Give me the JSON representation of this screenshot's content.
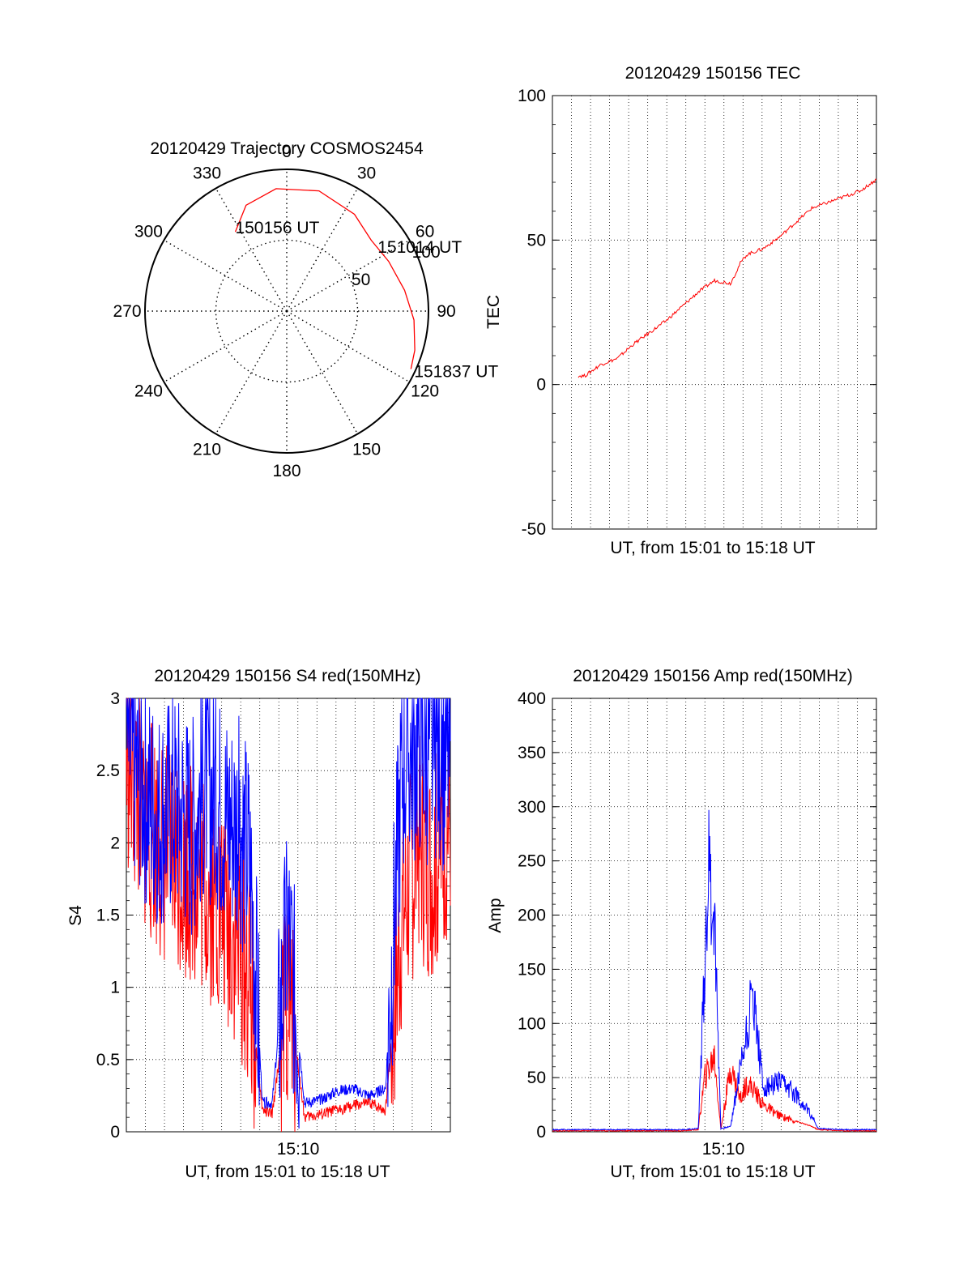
{
  "colors": {
    "red": "#ff0000",
    "blue": "#0000ff",
    "axis": "#000000"
  },
  "chart_data": [
    {
      "type": "polar",
      "title": "20120429 Trajectory COSMOS2454",
      "angle_labels": [
        "0",
        "30",
        "60",
        "90",
        "120",
        "150",
        "180",
        "210",
        "240",
        "270",
        "300",
        "330"
      ],
      "radial_labels": [
        "50",
        "100"
      ],
      "radial_range": [
        0,
        100
      ],
      "grid": true,
      "trajectory": {
        "color": "red",
        "points": [
          {
            "azimuth": 327,
            "elevation": 30
          },
          {
            "azimuth": 339,
            "elevation": 18
          },
          {
            "azimuth": 355,
            "elevation": 12
          },
          {
            "azimuth": 15,
            "elevation": 11
          },
          {
            "azimuth": 35,
            "elevation": 15
          },
          {
            "azimuth": 50,
            "elevation": 20
          },
          {
            "azimuth": 64,
            "elevation": 18
          },
          {
            "azimuth": 80,
            "elevation": 14
          },
          {
            "azimuth": 94,
            "elevation": 9
          },
          {
            "azimuth": 107,
            "elevation": 5
          },
          {
            "azimuth": 115,
            "elevation": 3
          }
        ]
      },
      "annotations": [
        {
          "text": "150156 UT",
          "azimuth": 327,
          "elevation": 30
        },
        {
          "text": "151014 UT",
          "azimuth": 52,
          "elevation": 20
        },
        {
          "text": "151837 UT",
          "azimuth": 115,
          "elevation": 3
        }
      ]
    },
    {
      "type": "line",
      "title": "20120429 150156 TEC",
      "xlabel": "UT, from 15:01 to 15:18 UT",
      "ylabel": "TEC",
      "ylim": [
        -50,
        100
      ],
      "yticks": [
        "-50",
        "0",
        "50",
        "100"
      ],
      "grid": true,
      "series": [
        {
          "color": "red",
          "x": [
            0.08,
            0.1,
            0.15,
            0.2,
            0.25,
            0.3,
            0.35,
            0.4,
            0.45,
            0.5,
            0.55,
            0.58,
            0.6,
            0.65,
            0.7,
            0.75,
            0.8,
            0.85,
            0.9,
            0.95,
            1.0
          ],
          "y": [
            3,
            3,
            7,
            9,
            14,
            18,
            22,
            27,
            32,
            36,
            35,
            42,
            45,
            47,
            51,
            56,
            61,
            63,
            65,
            67,
            71
          ]
        }
      ]
    },
    {
      "type": "line",
      "title": "20120429 150156 S4 red(150MHz)",
      "xlabel": "UT, from 15:01 to 15:18 UT",
      "ylabel": "S4",
      "ylim": [
        0,
        3
      ],
      "yticks": [
        "0",
        "0.5",
        "1",
        "1.5",
        "2",
        "2.5",
        "3"
      ],
      "xticks": [
        "15:10"
      ],
      "grid": true,
      "series": [
        {
          "color": "red",
          "x": [
            0.0,
            0.05,
            0.1,
            0.15,
            0.2,
            0.25,
            0.3,
            0.35,
            0.38,
            0.42,
            0.45,
            0.5,
            0.55,
            0.6,
            0.65,
            0.7,
            0.75,
            0.8,
            0.85,
            0.9,
            0.95,
            1.0
          ],
          "y": [
            2.6,
            2.2,
            2.0,
            1.9,
            1.8,
            1.7,
            1.5,
            1.3,
            1.0,
            0.15,
            0.12,
            1.0,
            0.1,
            0.12,
            0.15,
            0.18,
            0.2,
            0.15,
            1.5,
            2.0,
            1.8,
            2.2
          ]
        },
        {
          "color": "blue",
          "x": [
            0.0,
            0.05,
            0.1,
            0.15,
            0.2,
            0.25,
            0.3,
            0.35,
            0.38,
            0.42,
            0.45,
            0.5,
            0.55,
            0.6,
            0.65,
            0.7,
            0.75,
            0.8,
            0.85,
            0.9,
            0.95,
            1.0
          ],
          "y": [
            2.7,
            2.4,
            2.2,
            2.3,
            2.1,
            2.4,
            2.2,
            2.1,
            1.9,
            0.2,
            0.2,
            1.4,
            0.2,
            0.22,
            0.28,
            0.3,
            0.25,
            0.3,
            2.5,
            2.7,
            2.6,
            2.6
          ]
        }
      ]
    },
    {
      "type": "line",
      "title": "20120429 150156 Amp red(150MHz)",
      "xlabel": "UT, from 15:01 to 15:18 UT",
      "ylabel": "Amp",
      "ylim": [
        0,
        400
      ],
      "yticks": [
        "0",
        "50",
        "100",
        "150",
        "200",
        "250",
        "300",
        "350",
        "400"
      ],
      "xticks": [
        "15:10"
      ],
      "grid": true,
      "series": [
        {
          "color": "red",
          "x": [
            0.0,
            0.2,
            0.4,
            0.45,
            0.47,
            0.5,
            0.52,
            0.55,
            0.58,
            0.6,
            0.62,
            0.65,
            0.7,
            0.75,
            0.8,
            0.82,
            0.9,
            1.0
          ],
          "y": [
            1,
            1,
            1,
            2,
            50,
            70,
            2,
            60,
            30,
            45,
            40,
            25,
            15,
            10,
            5,
            2,
            1,
            1
          ]
        },
        {
          "color": "blue",
          "x": [
            0.0,
            0.2,
            0.4,
            0.45,
            0.47,
            0.48,
            0.5,
            0.52,
            0.55,
            0.58,
            0.6,
            0.62,
            0.65,
            0.7,
            0.75,
            0.8,
            0.82,
            0.9,
            1.0
          ],
          "y": [
            2,
            2,
            2,
            3,
            150,
            245,
            200,
            3,
            5,
            60,
            95,
            130,
            40,
            45,
            35,
            15,
            3,
            2,
            2
          ]
        }
      ]
    }
  ]
}
